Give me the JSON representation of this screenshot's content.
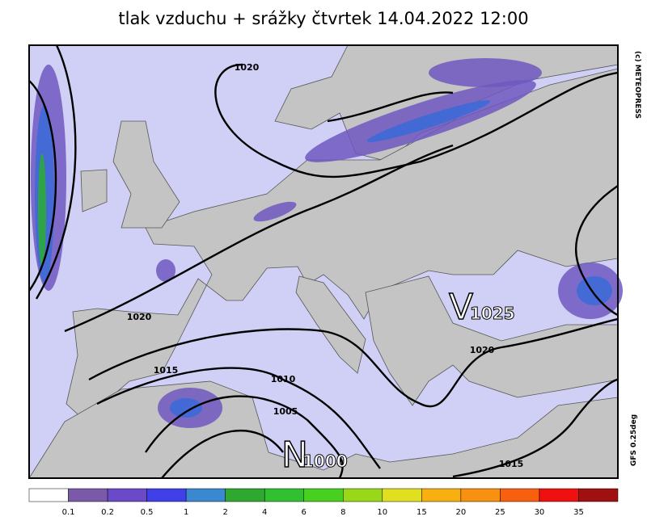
{
  "title": "tlak vzduchu + srážky čtvrtek 14.04.2022 12:00",
  "credit": "(c) METEOPRESS",
  "model": "GFS 0.25deg",
  "isobar_labels": [
    "1020",
    "1020",
    "1015",
    "1010",
    "1005",
    "1020",
    "1015"
  ],
  "pressure_centers": [
    {
      "letter": "V",
      "value": "1025"
    },
    {
      "letter": "N",
      "value": "1000"
    }
  ],
  "legend": {
    "colors": [
      "#ffffff",
      "#7a5aa8",
      "#6a4ac8",
      "#4040e8",
      "#3a88d0",
      "#2ea82e",
      "#30c030",
      "#48d020",
      "#98d818",
      "#e0e020",
      "#f8b010",
      "#f89010",
      "#f86010",
      "#f01010",
      "#a01010"
    ],
    "levels": [
      0.1,
      0.2,
      0.5,
      1,
      2,
      4,
      6,
      8,
      10,
      15,
      20,
      25,
      30,
      35
    ]
  }
}
